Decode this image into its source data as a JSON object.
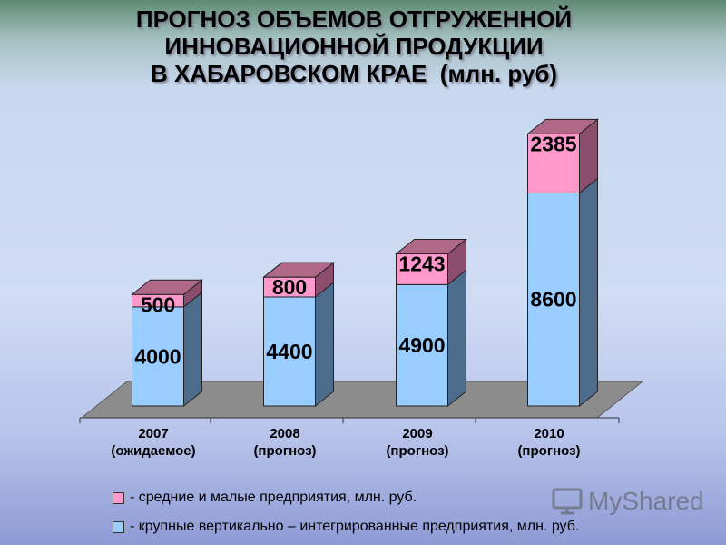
{
  "title_lines": [
    "ПРОГНОЗ ОБЪЕМОВ ОТГРУЖЕННОЙ",
    "ИННОВАЦИОННОЙ ПРОДУКЦИИ",
    "В ХАБАРОВСКОМ КРАЕ  (млн. руб)"
  ],
  "chart_data": {
    "type": "bar",
    "stacked": true,
    "three_d": true,
    "categories": [
      [
        "2007",
        "(ожидаемое)"
      ],
      [
        "2008",
        "(прогноз)"
      ],
      [
        "2009",
        "(прогноз)"
      ],
      [
        "2010",
        "(прогноз)"
      ]
    ],
    "series": [
      {
        "name": "- крупные вертикально – интегрированные предприятия, млн. руб.",
        "values": [
          4000,
          4400,
          4900,
          8600
        ],
        "color": "#99ccff",
        "side_color": "#4d6c8c",
        "top_color": "#7f9ecc"
      },
      {
        "name": "- средние и малые предприятия, млн. руб.",
        "values": [
          500,
          800,
          1243,
          2385
        ],
        "color": "#ff99cc",
        "side_color": "#8c4d6c",
        "top_color": "#b06888"
      }
    ],
    "legend_order": [
      1,
      0
    ],
    "ylim": [
      0,
      11000
    ],
    "grid": false,
    "legend_position": "bottom"
  },
  "colors": {
    "floor": "#8c8c8c",
    "floor_edge": "#5a5a5a"
  },
  "watermark": {
    "text": "MyShared",
    "icon": "presentation-screen-icon"
  }
}
